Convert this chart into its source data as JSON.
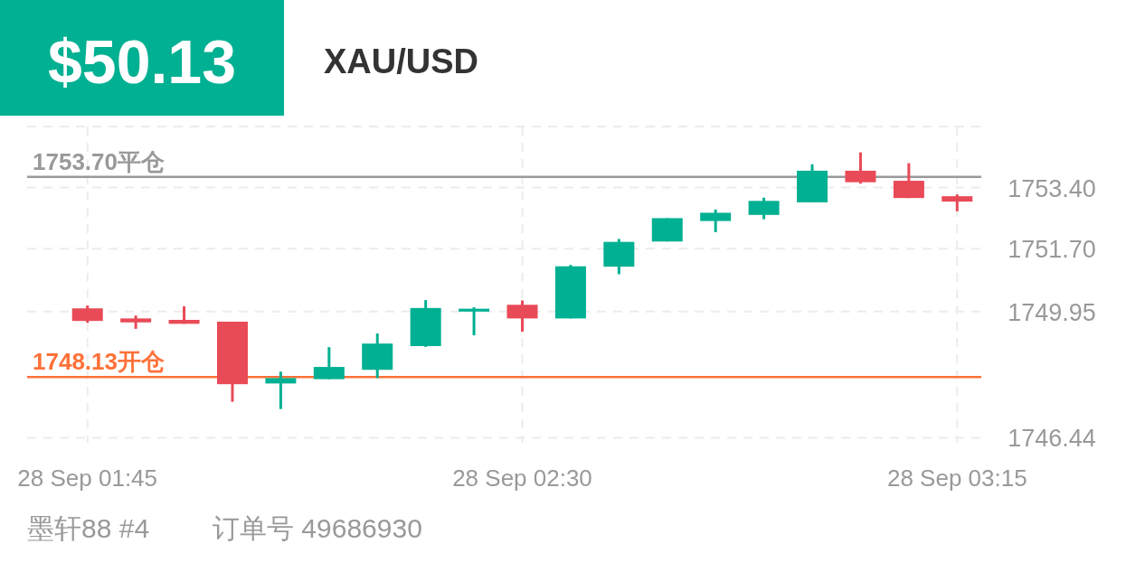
{
  "chart_data": {
    "type": "candlestick",
    "title": "XAU/USD",
    "annotations": [
      "$50.13",
      "墨轩88 #4",
      "订单号 49686930"
    ],
    "categories": [
      "28 Sep  01:45",
      null,
      null,
      null,
      null,
      null,
      null,
      null,
      null,
      "28 Sep  02:30",
      null,
      null,
      null,
      null,
      null,
      null,
      null,
      null,
      "28 Sep  03:15"
    ],
    "ohlc": [
      [
        1750.04,
        1750.12,
        1749.64,
        1749.69
      ],
      [
        1749.76,
        1749.84,
        1749.47,
        1749.65
      ],
      [
        1749.72,
        1750.1,
        1749.61,
        1749.61
      ],
      [
        1749.67,
        1749.67,
        1747.44,
        1747.93
      ],
      [
        1747.95,
        1748.28,
        1747.24,
        1748.1
      ],
      [
        1748.07,
        1748.96,
        1748.07,
        1748.41
      ],
      [
        1748.33,
        1749.34,
        1748.1,
        1749.06
      ],
      [
        1748.99,
        1750.27,
        1748.97,
        1750.05
      ],
      [
        1749.95,
        1750.07,
        1749.29,
        1750.03
      ],
      [
        1750.14,
        1750.26,
        1749.39,
        1749.76
      ],
      [
        1749.76,
        1751.25,
        1749.76,
        1751.21
      ],
      [
        1751.2,
        1751.97,
        1750.99,
        1751.89
      ],
      [
        1751.9,
        1752.55,
        1751.9,
        1752.55
      ],
      [
        1752.47,
        1752.79,
        1752.16,
        1752.7
      ],
      [
        1752.64,
        1753.12,
        1752.52,
        1753.03
      ],
      [
        1752.99,
        1754.05,
        1752.99,
        1753.87
      ],
      [
        1753.87,
        1754.38,
        1753.51,
        1753.55
      ],
      [
        1753.59,
        1754.08,
        1753.11,
        1753.11
      ],
      [
        1753.16,
        1753.21,
        1752.74,
        1753.01
      ]
    ],
    "colors": [
      "#e94a57",
      "#e94a57",
      "#e94a57",
      "#e94a57",
      "#00b092",
      "#00b092",
      "#00b092",
      "#00b092",
      "#00b092",
      "#e94a57",
      "#00b092",
      "#00b092",
      "#00b092",
      "#00b092",
      "#00b092",
      "#00b092",
      "#e94a57",
      "#e94a57",
      "#e94a57"
    ],
    "ylim": [
      1746.3,
      1755.1
    ],
    "yticks": [
      1746.44,
      1749.95,
      {
        "value": 1751.7,
        "label": "1751.70"
      },
      {
        "value": 1753.4,
        "label": "1753.40"
      }
    ],
    "grid": true,
    "ref_lines": [
      {
        "axis": "y",
        "value": 1753.7,
        "label": "1753.70平仓",
        "color": "#999999"
      },
      {
        "axis": "y",
        "value": 1748.13,
        "label": "1748.13开仓",
        "color": "#ff7139"
      }
    ]
  }
}
